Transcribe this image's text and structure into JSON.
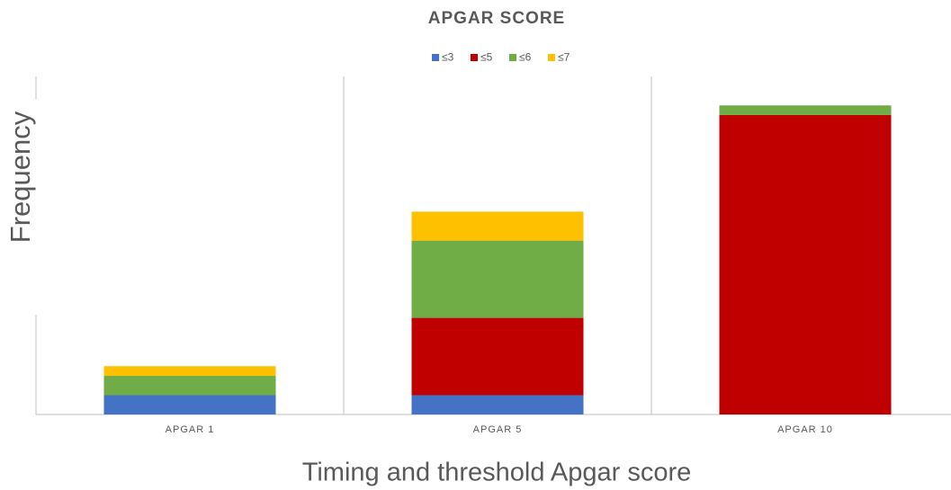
{
  "chart_data": {
    "type": "stacked_bar",
    "title": "APGAR SCORE",
    "x_label": "Timing and threshold Apgar score",
    "y_label": "Frequency",
    "categories": [
      "APGAR 1",
      "APGAR 5",
      "APGAR 10"
    ],
    "series": [
      {
        "name": "≤3",
        "color": "#4472c4",
        "values": [
          2,
          2,
          0
        ]
      },
      {
        "name": "≤5",
        "color": "#c00000",
        "values": [
          0,
          8,
          31
        ]
      },
      {
        "name": "≤6",
        "color": "#70ad47",
        "values": [
          2,
          8,
          1
        ]
      },
      {
        "name": "≤7",
        "color": "#ffc000",
        "values": [
          1,
          3,
          0
        ]
      }
    ],
    "ylim": [
      0,
      35
    ],
    "legend": "top"
  }
}
